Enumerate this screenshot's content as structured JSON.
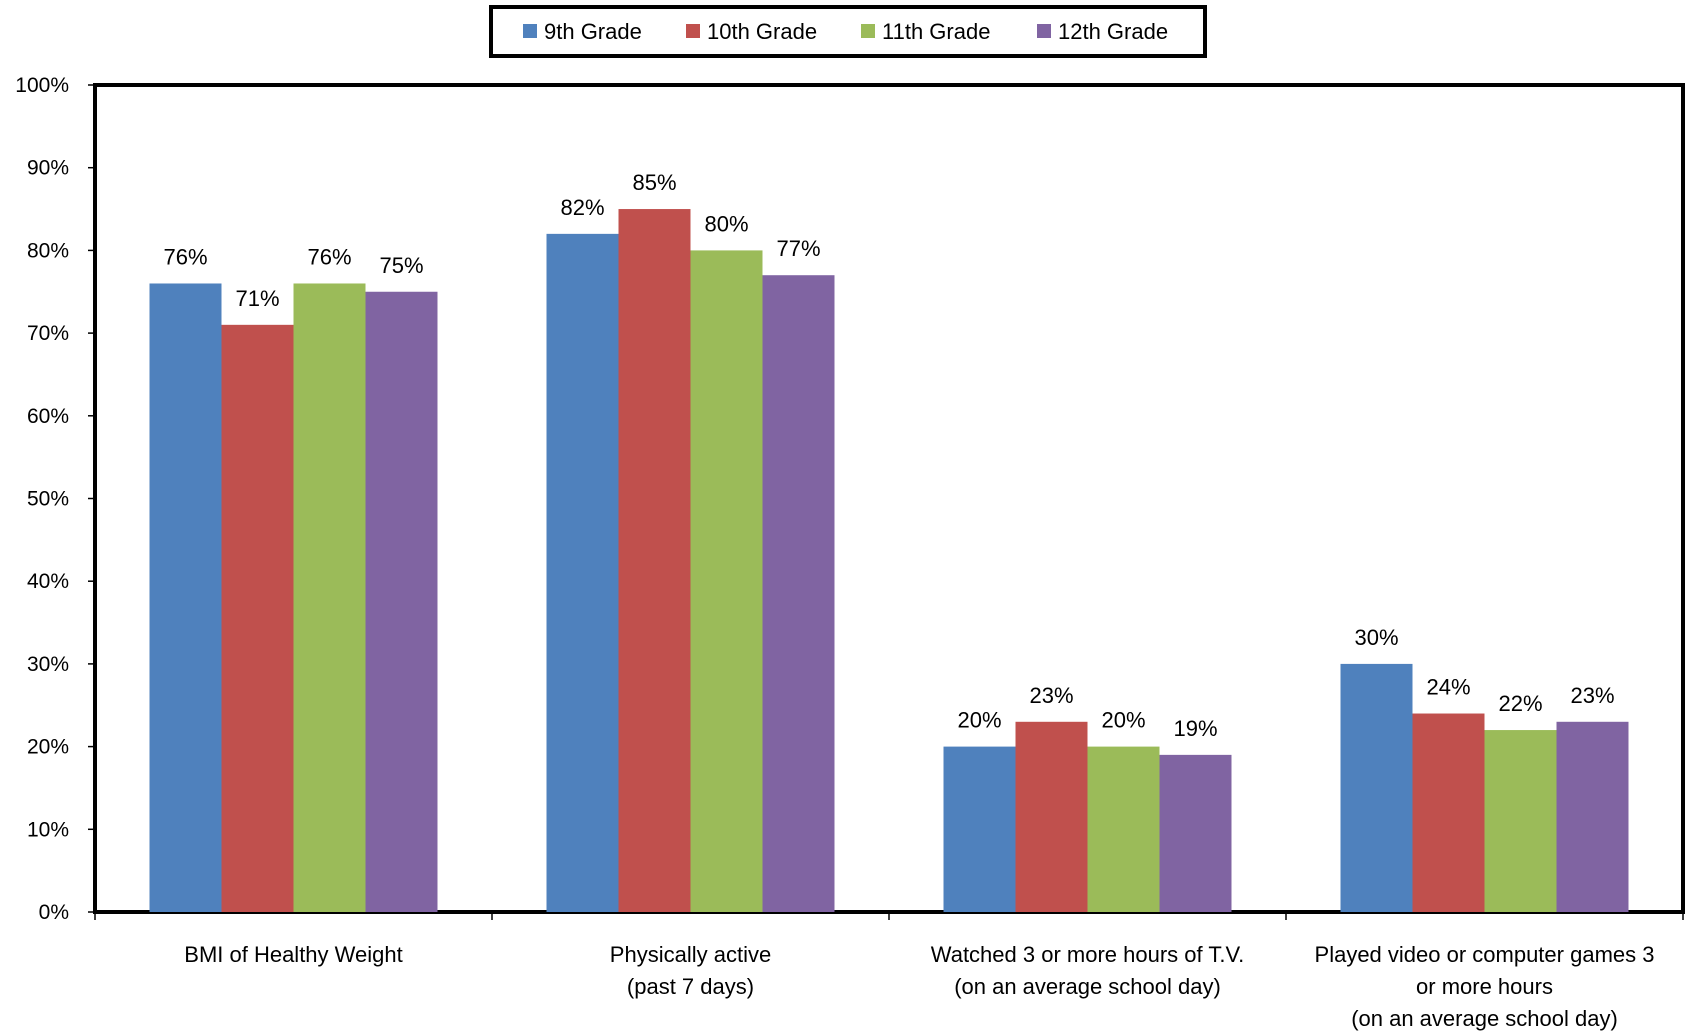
{
  "chart_data": {
    "type": "bar",
    "categories": [
      [
        "BMI of Healthy Weight"
      ],
      [
        "Physically active",
        "(past 7 days)"
      ],
      [
        "Watched 3 or more hours of T.V.",
        "(on an average school day)"
      ],
      [
        "Played video or computer games 3",
        "or more hours",
        "(on an average school day)"
      ]
    ],
    "series": [
      {
        "name": "9th Grade",
        "color": "#4F81BD",
        "values": [
          76,
          82,
          20,
          30
        ]
      },
      {
        "name": "10th Grade",
        "color": "#C0504D",
        "values": [
          71,
          85,
          23,
          24
        ]
      },
      {
        "name": "11th Grade",
        "color": "#9BBB59",
        "values": [
          76,
          80,
          20,
          22
        ]
      },
      {
        "name": "12th Grade",
        "color": "#8064A2",
        "values": [
          75,
          77,
          19,
          23
        ]
      }
    ],
    "ylim": [
      0,
      100
    ],
    "yticks": [
      0,
      10,
      20,
      30,
      40,
      50,
      60,
      70,
      80,
      90,
      100
    ],
    "value_suffix": "%",
    "legend_position": "top-center",
    "grid": false
  }
}
